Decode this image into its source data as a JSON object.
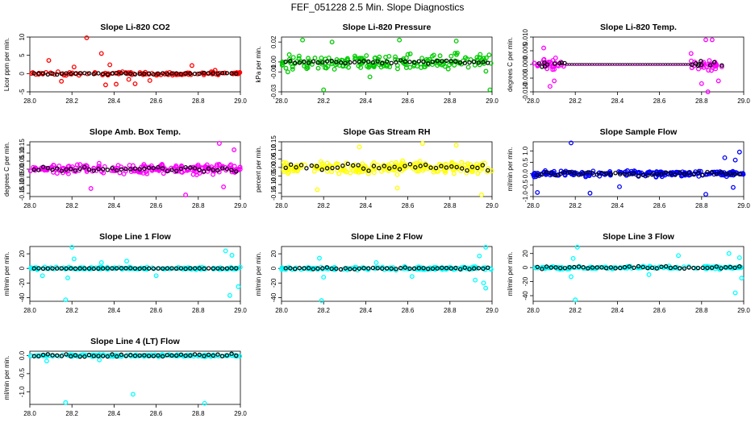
{
  "page": {
    "title": "FEF_051228  2.5 Min. Slope Diagnostics"
  },
  "colors": {
    "obs": "#000000"
  },
  "chart_data": [
    {
      "type": "scatter",
      "title": "Slope Li-820 CO2",
      "ylabel": "Licor ppm per min.",
      "xlim": [
        28.0,
        29.0
      ],
      "xticks": [
        "28.0",
        "28.2",
        "28.4",
        "28.6",
        "28.8",
        "29.0"
      ],
      "ylim": [
        -5,
        10
      ],
      "yticks": [
        "-5",
        "0",
        "5",
        "10"
      ],
      "color": "#ff0000",
      "points": [
        [
          28.27,
          9.8
        ],
        [
          28.09,
          3.6
        ],
        [
          28.34,
          5.5
        ],
        [
          28.38,
          2.4
        ],
        [
          28.44,
          0.5
        ],
        [
          28.47,
          -1.6
        ],
        [
          28.41,
          -2.9
        ],
        [
          28.36,
          -3.1
        ],
        [
          28.5,
          -2.8
        ],
        [
          28.57,
          -1.9
        ],
        [
          28.77,
          2.2
        ],
        [
          28.88,
          0.9
        ],
        [
          28.15,
          -2.1
        ],
        [
          28.21,
          1.8
        ]
      ],
      "cluster_y": 0,
      "spread": 0.7,
      "n": 110,
      "black_spread": 0.3,
      "black_n": 45
    },
    {
      "type": "scatter",
      "title": "Slope Li-820 Pressure",
      "ylabel": "kPa per min.",
      "xlim": [
        28.0,
        29.0
      ],
      "xticks": [
        "28.0",
        "28.2",
        "28.4",
        "28.6",
        "28.8",
        "29.0"
      ],
      "ylim": [
        -0.03,
        0.025
      ],
      "yticks": [
        "-0.03",
        "-0.01",
        "0.00",
        "0.02"
      ],
      "color": "#00cc00",
      "points": [
        [
          28.2,
          -0.028
        ],
        [
          28.99,
          -0.028
        ],
        [
          28.1,
          0.022
        ],
        [
          28.24,
          0.02
        ],
        [
          28.56,
          0.022
        ],
        [
          28.83,
          0.021
        ],
        [
          28.03,
          -0.01
        ],
        [
          28.42,
          -0.015
        ]
      ],
      "cluster_y": 0,
      "spread": 0.011,
      "n": 200,
      "black_spread": 0.002,
      "black_n": 45
    },
    {
      "type": "scatter",
      "title": "Slope Li-820 Temp.",
      "ylabel": "degrees C per min.",
      "xlim": [
        28.0,
        29.0
      ],
      "xticks": [
        "28.0",
        "28.2",
        "28.4",
        "28.6",
        "28.8",
        "29.0"
      ],
      "ylim": [
        -0.01,
        0.01
      ],
      "yticks": [
        "-0.010",
        "-0.005",
        "0.000",
        "0.005",
        "0.010"
      ],
      "color": "#ff00ff",
      "points": [
        [
          28.83,
          -0.01
        ],
        [
          28.85,
          0.009
        ],
        [
          28.82,
          0.009
        ],
        [
          28.08,
          -0.008
        ],
        [
          28.05,
          0.006
        ],
        [
          28.1,
          -0.006
        ],
        [
          28.75,
          0.004
        ],
        [
          28.88,
          -0.006
        ],
        [
          28.8,
          -0.007
        ]
      ],
      "segments": [
        [
          28.0,
          28.15
        ],
        [
          28.75,
          28.9
        ]
      ],
      "cluster_y": 0,
      "spread": 0.003,
      "n": 60,
      "black_spread": 0.0015,
      "black_n": 18,
      "flat_line": true
    },
    {
      "type": "scatter",
      "title": "Slope Amb. Box Temp.",
      "ylabel": "degrees C per min.",
      "xlim": [
        28.0,
        29.0
      ],
      "xticks": [
        "28.0",
        "28.2",
        "28.4",
        "28.6",
        "28.8",
        "29.0"
      ],
      "ylim": [
        -0.17,
        0.17
      ],
      "yticks": [
        "-0.15",
        "-0.10",
        "-0.05",
        "0.00",
        "0.05",
        "0.10",
        "0.15"
      ],
      "color": "#ff00ff",
      "points": [
        [
          28.9,
          0.16
        ],
        [
          28.74,
          -0.16
        ],
        [
          28.92,
          -0.11
        ],
        [
          28.29,
          -0.12
        ],
        [
          28.97,
          0.12
        ]
      ],
      "cluster_y": 0,
      "spread": 0.04,
      "n": 210,
      "black_spread": 0.02,
      "black_n": 45
    },
    {
      "type": "scatter",
      "title": "Slope Gas Stream RH",
      "ylabel": "percent per min.",
      "xlim": [
        28.0,
        29.0
      ],
      "xticks": [
        "28.0",
        "28.2",
        "28.4",
        "28.6",
        "28.8",
        "29.0"
      ],
      "ylim": [
        -0.17,
        0.15
      ],
      "yticks": [
        "-0.15",
        "-0.10",
        "-0.05",
        "0.00",
        "0.05",
        "0.10",
        "0.15"
      ],
      "color": "#ffff00",
      "points": [
        [
          28.67,
          0.14
        ],
        [
          28.17,
          -0.13
        ],
        [
          28.55,
          -0.12
        ],
        [
          28.95,
          -0.16
        ],
        [
          28.37,
          0.12
        ],
        [
          28.83,
          0.13
        ]
      ],
      "cluster_y": 0,
      "spread": 0.05,
      "n": 240,
      "black_spread": 0.03,
      "black_n": 40
    },
    {
      "type": "scatter",
      "title": "Slope Sample Flow",
      "ylabel": "ml/min per min.",
      "xlim": [
        28.0,
        29.0
      ],
      "xticks": [
        "28.0",
        "28.2",
        "28.4",
        "28.6",
        "28.8",
        "29.0"
      ],
      "ylim": [
        -1.0,
        1.4
      ],
      "yticks": [
        "-1.0",
        "-0.5",
        "0.0",
        "0.5",
        "1.0"
      ],
      "color": "#0000ff",
      "points": [
        [
          28.18,
          1.35
        ],
        [
          28.98,
          0.95
        ],
        [
          28.02,
          -0.82
        ],
        [
          28.27,
          -0.85
        ],
        [
          28.41,
          -0.57
        ],
        [
          28.82,
          -0.9
        ],
        [
          28.91,
          0.7
        ],
        [
          28.95,
          -0.6
        ],
        [
          28.96,
          0.6
        ]
      ],
      "cluster_y": 0,
      "spread": 0.18,
      "n": 230,
      "black_spread": 0.12,
      "black_n": 45
    },
    {
      "type": "scatter",
      "title": "Slope Line 1 Flow",
      "ylabel": "ml/min per min.",
      "xlim": [
        28.0,
        29.0
      ],
      "xticks": [
        "28.0",
        "28.2",
        "28.4",
        "28.6",
        "28.8",
        "29.0"
      ],
      "ylim": [
        -45,
        30
      ],
      "yticks": [
        "-40",
        "-20",
        "0",
        "20"
      ],
      "color": "#00ffff",
      "points": [
        [
          28.2,
          29
        ],
        [
          28.17,
          -43
        ],
        [
          28.95,
          -37
        ],
        [
          28.99,
          -25
        ],
        [
          28.93,
          24
        ],
        [
          28.21,
          13
        ],
        [
          28.18,
          -13
        ],
        [
          28.96,
          18
        ],
        [
          28.6,
          -10
        ],
        [
          28.06,
          -10
        ],
        [
          28.34,
          8
        ],
        [
          28.46,
          10
        ]
      ],
      "cluster_y": 0,
      "spread": 2.5,
      "n": 150,
      "black_spread": 0.6,
      "black_n": 45
    },
    {
      "type": "scatter",
      "title": "Slope Line 2 Flow",
      "ylabel": "ml/min per min.",
      "xlim": [
        28.0,
        29.0
      ],
      "xticks": [
        "28.0",
        "28.2",
        "28.4",
        "28.6",
        "28.8",
        "29.0"
      ],
      "ylim": [
        -45,
        30
      ],
      "yticks": [
        "-40",
        "-20",
        "0",
        "20"
      ],
      "color": "#00ffff",
      "points": [
        [
          28.19,
          -44
        ],
        [
          28.97,
          29
        ],
        [
          28.97,
          -27
        ],
        [
          28.92,
          -16
        ],
        [
          28.94,
          17
        ],
        [
          28.96,
          -20
        ],
        [
          28.2,
          -12
        ],
        [
          28.18,
          14
        ],
        [
          28.62,
          -11
        ],
        [
          28.45,
          8
        ]
      ],
      "cluster_y": 0,
      "spread": 3,
      "n": 150,
      "black_spread": 2,
      "black_n": 45
    },
    {
      "type": "scatter",
      "title": "Slope Line 3 Flow",
      "ylabel": "ml/min per min.",
      "xlim": [
        28.0,
        29.0
      ],
      "xticks": [
        "28.0",
        "28.2",
        "28.4",
        "28.6",
        "28.8",
        "29.0"
      ],
      "ylim": [
        -48,
        30
      ],
      "yticks": [
        "-40",
        "-20",
        "0",
        "20"
      ],
      "color": "#00ffff",
      "points": [
        [
          28.2,
          -46
        ],
        [
          28.21,
          29
        ],
        [
          28.96,
          -36
        ],
        [
          28.99,
          -15
        ],
        [
          28.93,
          20
        ],
        [
          28.18,
          -13
        ],
        [
          28.19,
          13
        ],
        [
          28.55,
          -10
        ],
        [
          28.69,
          17
        ],
        [
          28.98,
          14
        ]
      ],
      "cluster_y": 0,
      "spread": 3,
      "n": 150,
      "black_spread": 2.5,
      "black_n": 45
    },
    {
      "type": "scatter",
      "title": "Slope Line 4 (LT) Flow",
      "ylabel": "ml/min per min.",
      "xlim": [
        28.0,
        29.0
      ],
      "xticks": [
        "28.0",
        "28.2",
        "28.4",
        "28.6",
        "28.8",
        "29.0"
      ],
      "ylim": [
        -1.35,
        0.12
      ],
      "yticks": [
        "-1.0",
        "-0.5",
        "0.0"
      ],
      "color": "#00ffff",
      "points": [
        [
          28.17,
          -1.3
        ],
        [
          28.49,
          -1.07
        ],
        [
          28.83,
          -1.32
        ],
        [
          28.08,
          -0.15
        ],
        [
          28.33,
          -0.12
        ]
      ],
      "cluster_y": 0,
      "spread": 0.04,
      "n": 180,
      "black_spread": 0.05,
      "black_n": 45
    }
  ]
}
